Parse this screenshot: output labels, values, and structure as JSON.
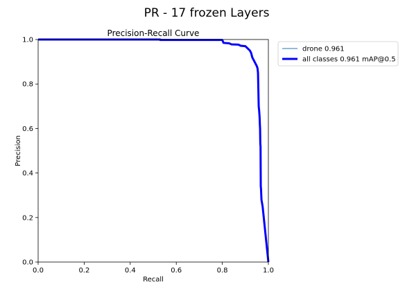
{
  "figure": {
    "suptitle": "PR - 17 frozen Layers"
  },
  "chart_data": {
    "type": "line",
    "title": "Precision-Recall Curve",
    "xlabel": "Recall",
    "ylabel": "Precision",
    "xlim": [
      0.0,
      1.0
    ],
    "ylim": [
      0.0,
      1.0
    ],
    "xticks": [
      0.0,
      0.2,
      0.4,
      0.6,
      0.8,
      1.0
    ],
    "yticks": [
      0.0,
      0.2,
      0.4,
      0.6,
      0.8,
      1.0
    ],
    "xtick_labels": [
      "0.0",
      "0.2",
      "0.4",
      "0.6",
      "0.8",
      "1.0"
    ],
    "ytick_labels": [
      "0.0",
      "0.2",
      "0.4",
      "0.6",
      "0.8",
      "1.0"
    ],
    "grid": false,
    "legend_position": "outside-top-right",
    "series": [
      {
        "name": "drone 0.961",
        "color": "#1f77b4",
        "style": "thin",
        "x": [
          0.0,
          0.53,
          0.53,
          0.8,
          0.805,
          0.83,
          0.84,
          0.87,
          0.88,
          0.9,
          0.91,
          0.92,
          0.925,
          0.93,
          0.935,
          0.94,
          0.945,
          0.95,
          0.953,
          0.955,
          0.956,
          0.957,
          0.958,
          0.96,
          0.962,
          0.963,
          0.964,
          0.965,
          0.966,
          0.967,
          0.968,
          0.97,
          0.975,
          0.98,
          0.985,
          0.99,
          0.995,
          1.0
        ],
        "y": [
          1.0,
          1.0,
          0.998,
          0.998,
          0.985,
          0.983,
          0.978,
          0.977,
          0.972,
          0.97,
          0.96,
          0.95,
          0.94,
          0.92,
          0.91,
          0.9,
          0.89,
          0.88,
          0.87,
          0.85,
          0.8,
          0.75,
          0.7,
          0.68,
          0.65,
          0.62,
          0.6,
          0.53,
          0.52,
          0.34,
          0.33,
          0.28,
          0.25,
          0.2,
          0.15,
          0.1,
          0.05,
          0.0
        ]
      },
      {
        "name": "all classes 0.961 mAP@0.5",
        "color": "#0000ff",
        "style": "thick",
        "x": [
          0.0,
          0.53,
          0.53,
          0.8,
          0.805,
          0.83,
          0.84,
          0.87,
          0.88,
          0.9,
          0.91,
          0.92,
          0.925,
          0.93,
          0.935,
          0.94,
          0.945,
          0.95,
          0.953,
          0.955,
          0.956,
          0.957,
          0.958,
          0.96,
          0.962,
          0.963,
          0.964,
          0.965,
          0.966,
          0.967,
          0.968,
          0.97,
          0.975,
          0.98,
          0.985,
          0.99,
          0.995,
          1.0
        ],
        "y": [
          1.0,
          1.0,
          0.998,
          0.998,
          0.985,
          0.983,
          0.978,
          0.977,
          0.972,
          0.97,
          0.96,
          0.95,
          0.94,
          0.92,
          0.91,
          0.9,
          0.89,
          0.88,
          0.87,
          0.85,
          0.8,
          0.75,
          0.7,
          0.68,
          0.65,
          0.62,
          0.6,
          0.53,
          0.52,
          0.34,
          0.33,
          0.28,
          0.25,
          0.2,
          0.15,
          0.1,
          0.05,
          0.0
        ]
      }
    ]
  }
}
